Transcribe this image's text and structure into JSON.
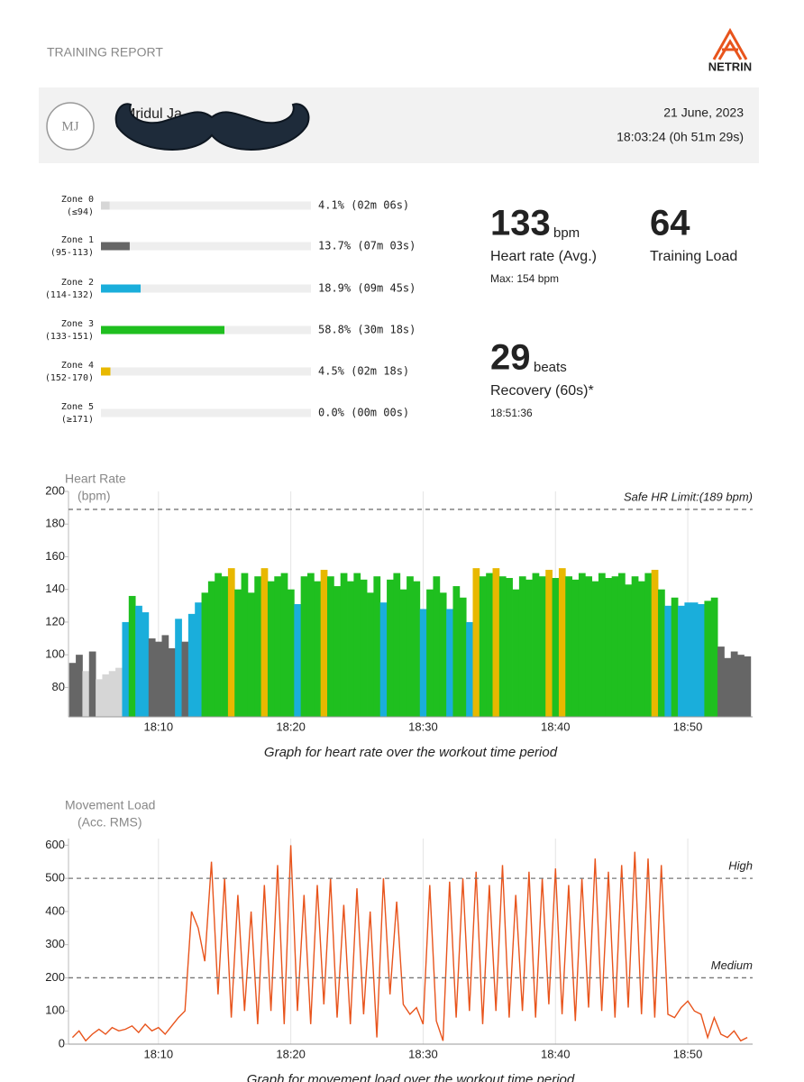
{
  "header": {
    "title": "TRAINING REPORT",
    "brand": "NETRIN"
  },
  "profile": {
    "initials": "MJ",
    "name": "Mridul Ja",
    "date": "21 June, 2023",
    "time": "18:03:24 (0h 51m 29s)"
  },
  "zones": {
    "xlim": [
      0,
      100
    ],
    "items": [
      {
        "name": "Zone 0",
        "range": "(≤94)",
        "value": 4.1,
        "value_label": "4.1% (02m 06s)",
        "color": "#d6d6d6"
      },
      {
        "name": "Zone 1",
        "range": "(95-113)",
        "value": 13.7,
        "value_label": "13.7% (07m 03s)",
        "color": "#666666"
      },
      {
        "name": "Zone 2",
        "range": "(114-132)",
        "value": 18.9,
        "value_label": "18.9% (09m 45s)",
        "color": "#1aaedb"
      },
      {
        "name": "Zone 3",
        "range": "(133-151)",
        "value": 58.8,
        "value_label": "58.8% (30m 18s)",
        "color": "#1fbf1f"
      },
      {
        "name": "Zone 4",
        "range": "(152-170)",
        "value": 4.5,
        "value_label": "4.5% (02m 18s)",
        "color": "#e8b800"
      },
      {
        "name": "Zone 5",
        "range": "(≥171)",
        "value": 0.0,
        "value_label": "0.0% (00m 00s)",
        "color": "#e8541c"
      }
    ]
  },
  "stats": {
    "hr_avg": "133",
    "hr_unit": "bpm",
    "hr_label": "Heart rate (Avg.)",
    "hr_max": "Max: 154 bpm",
    "load": "64",
    "load_label": "Training Load",
    "recovery": "29",
    "recovery_unit": "beats",
    "recovery_label": "Recovery (60s)*",
    "recovery_time": "18:51:36"
  },
  "chart_data": [
    {
      "type": "area",
      "title": "Heart Rate",
      "y_label": "(bpm)",
      "caption": "Graph for heart rate over the workout time period",
      "x": [
        3.5,
        4,
        4.5,
        5,
        5.5,
        6,
        6.5,
        7,
        7.5,
        8,
        8.5,
        9,
        9.5,
        10,
        10.5,
        11,
        11.5,
        12,
        12.5,
        13,
        13.5,
        14,
        14.5,
        15,
        15.5,
        16,
        16.5,
        17,
        17.5,
        18,
        18.5,
        19,
        19.5,
        20,
        20.5,
        21,
        21.5,
        22,
        22.5,
        23,
        23.5,
        24,
        24.5,
        25,
        25.5,
        26,
        26.5,
        27,
        27.5,
        28,
        28.5,
        29,
        29.5,
        30,
        30.5,
        31,
        31.5,
        32,
        32.5,
        33,
        33.5,
        34,
        34.5,
        35,
        35.5,
        36,
        36.5,
        37,
        37.5,
        38,
        38.5,
        39,
        39.5,
        40,
        40.5,
        41,
        41.5,
        42,
        42.5,
        43,
        43.5,
        44,
        44.5,
        45,
        45.5,
        46,
        46.5,
        47,
        47.5,
        48,
        48.5,
        49,
        49.5,
        50,
        50.5,
        51,
        51.5,
        52,
        52.5,
        53,
        53.5,
        54,
        54.5
      ],
      "values": [
        95,
        100,
        90,
        102,
        85,
        88,
        90,
        92,
        120,
        136,
        130,
        126,
        110,
        108,
        112,
        104,
        122,
        108,
        125,
        132,
        138,
        145,
        150,
        148,
        153,
        140,
        150,
        138,
        148,
        153,
        145,
        148,
        150,
        140,
        131,
        148,
        150,
        145,
        152,
        148,
        142,
        150,
        145,
        150,
        146,
        138,
        148,
        132,
        146,
        150,
        140,
        148,
        145,
        128,
        140,
        148,
        138,
        128,
        142,
        135,
        120,
        153,
        148,
        150,
        153,
        148,
        147,
        140,
        148,
        146,
        150,
        148,
        152,
        147,
        153,
        148,
        146,
        150,
        148,
        145,
        150,
        147,
        148,
        150,
        143,
        148,
        145,
        150,
        152,
        140,
        130,
        135,
        130,
        132,
        132,
        131,
        133,
        135,
        105,
        98,
        102,
        100,
        99
      ],
      "zone_floors": [
        0,
        95,
        114,
        133,
        152,
        171
      ],
      "xlim": [
        3.2,
        54.9
      ],
      "ylim": [
        62,
        200
      ],
      "xticks": [
        {
          "value": 10,
          "label": "18:10"
        },
        {
          "value": 20,
          "label": "18:20"
        },
        {
          "value": 30,
          "label": "18:30"
        },
        {
          "value": 40,
          "label": "18:40"
        },
        {
          "value": 50,
          "label": "18:50"
        }
      ],
      "yticks": [
        80,
        100,
        120,
        140,
        160,
        180,
        200
      ],
      "grid": true,
      "reference_lines": [
        {
          "value": 189,
          "label": "Safe HR Limit:(189 bpm)"
        }
      ]
    },
    {
      "type": "line",
      "title": "Movement Load",
      "y_label": "(Acc. RMS)",
      "caption": "Graph for movement load over the workout time period",
      "color": "#e8541c",
      "x": [
        3.5,
        4,
        4.5,
        5,
        5.5,
        6,
        6.5,
        7,
        7.5,
        8,
        8.5,
        9,
        9.5,
        10,
        10.5,
        11,
        11.5,
        12,
        12.5,
        13,
        13.5,
        14,
        14.5,
        15,
        15.5,
        16,
        16.5,
        17,
        17.5,
        18,
        18.5,
        19,
        19.5,
        20,
        20.5,
        21,
        21.5,
        22,
        22.5,
        23,
        23.5,
        24,
        24.5,
        25,
        25.5,
        26,
        26.5,
        27,
        27.5,
        28,
        28.5,
        29,
        29.5,
        30,
        30.5,
        31,
        31.5,
        32,
        32.5,
        33,
        33.5,
        34,
        34.5,
        35,
        35.5,
        36,
        36.5,
        37,
        37.5,
        38,
        38.5,
        39,
        39.5,
        40,
        40.5,
        41,
        41.5,
        42,
        42.5,
        43,
        43.5,
        44,
        44.5,
        45,
        45.5,
        46,
        46.5,
        47,
        47.5,
        48,
        48.5,
        49,
        49.5,
        50,
        50.5,
        51,
        51.5,
        52,
        52.5,
        53,
        53.5,
        54,
        54.5
      ],
      "values": [
        20,
        40,
        10,
        30,
        45,
        30,
        50,
        40,
        45,
        55,
        35,
        60,
        40,
        50,
        30,
        55,
        80,
        100,
        400,
        350,
        250,
        550,
        150,
        500,
        80,
        450,
        100,
        400,
        60,
        480,
        100,
        540,
        60,
        600,
        100,
        450,
        60,
        480,
        120,
        500,
        80,
        420,
        60,
        470,
        90,
        400,
        20,
        500,
        150,
        430,
        120,
        90,
        110,
        60,
        480,
        70,
        10,
        490,
        80,
        500,
        100,
        520,
        60,
        480,
        100,
        540,
        80,
        450,
        100,
        520,
        80,
        500,
        120,
        530,
        90,
        480,
        70,
        500,
        110,
        560,
        100,
        520,
        80,
        540,
        110,
        580,
        90,
        560,
        80,
        540,
        90,
        80,
        110,
        130,
        100,
        90,
        20,
        80,
        30,
        20,
        40,
        10,
        20
      ],
      "xlim": [
        3.2,
        54.9
      ],
      "ylim": [
        0,
        620
      ],
      "xticks": [
        {
          "value": 10,
          "label": "18:10"
        },
        {
          "value": 20,
          "label": "18:20"
        },
        {
          "value": 30,
          "label": "18:30"
        },
        {
          "value": 40,
          "label": "18:40"
        },
        {
          "value": 50,
          "label": "18:50"
        }
      ],
      "yticks": [
        0,
        100,
        200,
        300,
        400,
        500,
        600
      ],
      "grid": true,
      "reference_lines": [
        {
          "value": 500,
          "label": "High"
        },
        {
          "value": 200,
          "label": "Medium"
        }
      ]
    }
  ]
}
